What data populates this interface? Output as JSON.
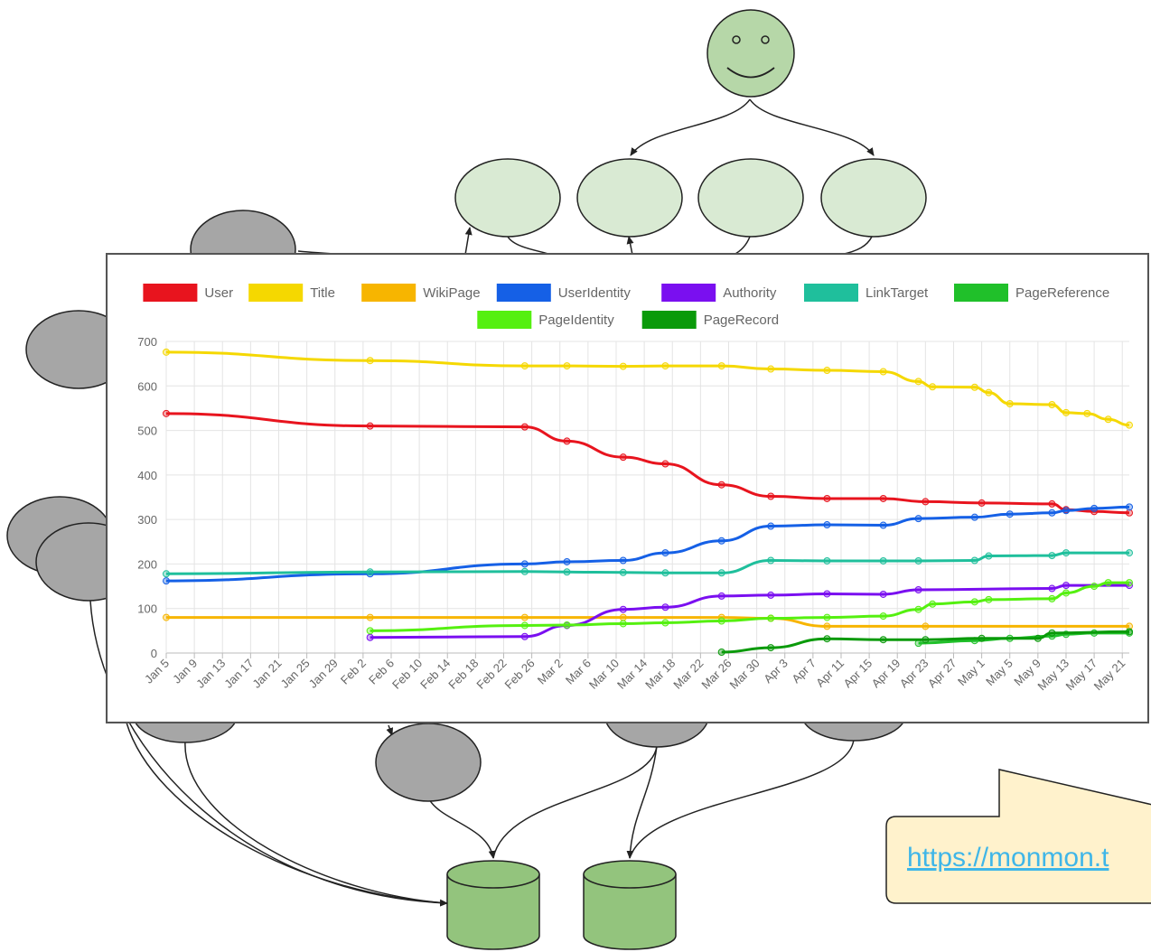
{
  "callout": {
    "link_text": "https://monmon.t"
  },
  "colors": {
    "smiley_fill": "#b6d7a8",
    "top_node_fill": "#d9ead3",
    "gray_node_fill": "#a6a6a6",
    "db_fill": "#93c47d",
    "callout_fill": "#fff2cc"
  },
  "chart_data": {
    "type": "line",
    "ylim": [
      0,
      700
    ],
    "yticks": [
      0,
      100,
      200,
      300,
      400,
      500,
      600,
      700
    ],
    "x_start": "Jan 5",
    "x_tick_labels": [
      "Jan 5",
      "Jan 9",
      "Jan 13",
      "Jan 17",
      "Jan 21",
      "Jan 25",
      "Jan 29",
      "Feb 2",
      "Feb 6",
      "Feb 10",
      "Feb 14",
      "Feb 18",
      "Feb 22",
      "Feb 26",
      "Mar 2",
      "Mar 6",
      "Mar 10",
      "Mar 14",
      "Mar 18",
      "Mar 22",
      "Mar 26",
      "Mar 30",
      "Apr 3",
      "Apr 7",
      "Apr 11",
      "Apr 15",
      "Apr 19",
      "Apr 23",
      "Apr 27",
      "May 1",
      "May 5",
      "May 9",
      "May 13",
      "May 17",
      "May 21"
    ],
    "grid": true,
    "legend_position": "top",
    "series": [
      {
        "name": "User",
        "color": "#e8141e",
        "points": [
          [
            "Jan 5",
            538
          ],
          [
            "Feb 3",
            510
          ],
          [
            "Feb 25",
            508
          ],
          [
            "Mar 3",
            476
          ],
          [
            "Mar 11",
            440
          ],
          [
            "Mar 17",
            425
          ],
          [
            "Mar 25",
            378
          ],
          [
            "Apr 1",
            352
          ],
          [
            "Apr 9",
            347
          ],
          [
            "Apr 17",
            347
          ],
          [
            "Apr 23",
            340
          ],
          [
            "May 1",
            337
          ],
          [
            "May 11",
            335
          ],
          [
            "May 13",
            322
          ],
          [
            "May 17",
            318
          ],
          [
            "May 22",
            315
          ]
        ]
      },
      {
        "name": "Title",
        "color": "#f5d800",
        "points": [
          [
            "Jan 5",
            676
          ],
          [
            "Feb 3",
            657
          ],
          [
            "Feb 25",
            645
          ],
          [
            "Mar 3",
            645
          ],
          [
            "Mar 11",
            644
          ],
          [
            "Mar 17",
            645
          ],
          [
            "Mar 25",
            645
          ],
          [
            "Apr 1",
            638
          ],
          [
            "Apr 9",
            635
          ],
          [
            "Apr 17",
            632
          ],
          [
            "Apr 22",
            610
          ],
          [
            "Apr 24",
            598
          ],
          [
            "Apr 30",
            597
          ],
          [
            "May 2",
            585
          ],
          [
            "May 5",
            560
          ],
          [
            "May 11",
            558
          ],
          [
            "May 13",
            540
          ],
          [
            "May 16",
            538
          ],
          [
            "May 19",
            525
          ],
          [
            "May 22",
            512
          ]
        ]
      },
      {
        "name": "WikiPage",
        "color": "#f7b500",
        "points": [
          [
            "Jan 5",
            80
          ],
          [
            "Feb 3",
            80
          ],
          [
            "Feb 25",
            80
          ],
          [
            "Mar 11",
            80
          ],
          [
            "Mar 25",
            80
          ],
          [
            "Apr 1",
            78
          ],
          [
            "Apr 9",
            60
          ],
          [
            "Apr 23",
            60
          ],
          [
            "May 22",
            60
          ]
        ]
      },
      {
        "name": "UserIdentity",
        "color": "#1560e6",
        "points": [
          [
            "Jan 5",
            162
          ],
          [
            "Feb 3",
            178
          ],
          [
            "Feb 25",
            200
          ],
          [
            "Mar 3",
            205
          ],
          [
            "Mar 11",
            208
          ],
          [
            "Mar 17",
            225
          ],
          [
            "Mar 25",
            252
          ],
          [
            "Apr 1",
            285
          ],
          [
            "Apr 9",
            288
          ],
          [
            "Apr 17",
            287
          ],
          [
            "Apr 22",
            302
          ],
          [
            "Apr 30",
            305
          ],
          [
            "May 5",
            312
          ],
          [
            "May 11",
            315
          ],
          [
            "May 13",
            320
          ],
          [
            "May 17",
            325
          ],
          [
            "May 22",
            328
          ]
        ]
      },
      {
        "name": "Authority",
        "color": "#7a0ff0",
        "points": [
          [
            "Feb 3",
            35
          ],
          [
            "Feb 25",
            37
          ],
          [
            "Mar 3",
            62
          ],
          [
            "Mar 11",
            98
          ],
          [
            "Mar 17",
            103
          ],
          [
            "Mar 25",
            128
          ],
          [
            "Apr 1",
            130
          ],
          [
            "Apr 9",
            133
          ],
          [
            "Apr 17",
            132
          ],
          [
            "Apr 22",
            142
          ],
          [
            "May 11",
            145
          ],
          [
            "May 13",
            152
          ],
          [
            "May 22",
            152
          ]
        ]
      },
      {
        "name": "LinkTarget",
        "color": "#1fbf9c",
        "points": [
          [
            "Jan 5",
            178
          ],
          [
            "Feb 3",
            182
          ],
          [
            "Feb 25",
            183
          ],
          [
            "Mar 3",
            182
          ],
          [
            "Mar 11",
            181
          ],
          [
            "Mar 17",
            180
          ],
          [
            "Mar 25",
            180
          ],
          [
            "Apr 1",
            208
          ],
          [
            "Apr 9",
            207
          ],
          [
            "Apr 17",
            207
          ],
          [
            "Apr 22",
            207
          ],
          [
            "Apr 30",
            208
          ],
          [
            "May 2",
            218
          ],
          [
            "May 11",
            219
          ],
          [
            "May 13",
            225
          ],
          [
            "May 22",
            225
          ]
        ]
      },
      {
        "name": "PageReference",
        "color": "#20c02a",
        "points": [
          [
            "Apr 22",
            22
          ],
          [
            "Apr 30",
            28
          ],
          [
            "May 5",
            33
          ],
          [
            "May 11",
            38
          ],
          [
            "May 13",
            42
          ],
          [
            "May 17",
            45
          ],
          [
            "May 22",
            45
          ]
        ]
      },
      {
        "name": "PageIdentity",
        "color": "#55f010",
        "points": [
          [
            "Feb 3",
            50
          ],
          [
            "Feb 25",
            62
          ],
          [
            "Mar 3",
            63
          ],
          [
            "Mar 11",
            66
          ],
          [
            "Mar 17",
            68
          ],
          [
            "Mar 25",
            72
          ],
          [
            "Apr 1",
            78
          ],
          [
            "Apr 9",
            80
          ],
          [
            "Apr 17",
            83
          ],
          [
            "Apr 22",
            98
          ],
          [
            "Apr 24",
            110
          ],
          [
            "Apr 30",
            115
          ],
          [
            "May 2",
            120
          ],
          [
            "May 11",
            122
          ],
          [
            "May 13",
            135
          ],
          [
            "May 17",
            150
          ],
          [
            "May 19",
            158
          ],
          [
            "May 22",
            158
          ]
        ]
      },
      {
        "name": "PageRecord",
        "color": "#0a9a0a",
        "points": [
          [
            "Mar 25",
            2
          ],
          [
            "Apr 1",
            12
          ],
          [
            "Apr 9",
            32
          ],
          [
            "Apr 17",
            30
          ],
          [
            "Apr 23",
            30
          ],
          [
            "May 1",
            33
          ],
          [
            "May 9",
            33
          ],
          [
            "May 11",
            45
          ],
          [
            "May 22",
            48
          ]
        ]
      }
    ]
  }
}
